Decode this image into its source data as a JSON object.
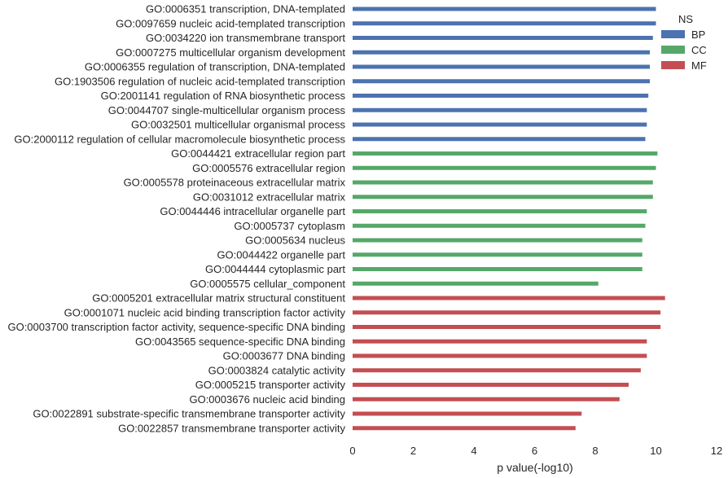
{
  "chart_data": {
    "type": "bar",
    "orientation": "horizontal",
    "xlabel": "p value(-log10)",
    "ylabel": "",
    "xlim": [
      0,
      12
    ],
    "xticks": [
      0,
      2,
      4,
      6,
      8,
      10,
      12
    ],
    "grid": false,
    "legend": {
      "title": "NS",
      "placement": "top-right",
      "entries": [
        {
          "name": "BP",
          "color": "#4c72b0"
        },
        {
          "name": "CC",
          "color": "#55a868"
        },
        {
          "name": "MF",
          "color": "#c44e52"
        }
      ]
    },
    "rows": [
      {
        "label": "GO:0006351 transcription, DNA-templated",
        "group": "BP",
        "value": 10.0
      },
      {
        "label": "GO:0097659 nucleic acid-templated transcription",
        "group": "BP",
        "value": 10.0
      },
      {
        "label": "GO:0034220 ion transmembrane transport",
        "group": "BP",
        "value": 9.9
      },
      {
        "label": "GO:0007275 multicellular organism development",
        "group": "BP",
        "value": 9.8
      },
      {
        "label": "GO:0006355 regulation of transcription, DNA-templated",
        "group": "BP",
        "value": 9.8
      },
      {
        "label": "GO:1903506 regulation of nucleic acid-templated transcription",
        "group": "BP",
        "value": 9.8
      },
      {
        "label": "GO:2001141 regulation of RNA biosynthetic process",
        "group": "BP",
        "value": 9.75
      },
      {
        "label": "GO:0044707 single-multicellular organism process",
        "group": "BP",
        "value": 9.7
      },
      {
        "label": "GO:0032501 multicellular organismal process",
        "group": "BP",
        "value": 9.7
      },
      {
        "label": "GO:2000112 regulation of cellular macromolecule biosynthetic process",
        "group": "BP",
        "value": 9.65
      },
      {
        "label": "GO:0044421 extracellular region part",
        "group": "CC",
        "value": 10.05
      },
      {
        "label": "GO:0005576 extracellular region",
        "group": "CC",
        "value": 10.0
      },
      {
        "label": "GO:0005578 proteinaceous extracellular matrix",
        "group": "CC",
        "value": 9.9
      },
      {
        "label": "GO:0031012 extracellular matrix",
        "group": "CC",
        "value": 9.9
      },
      {
        "label": "GO:0044446 intracellular organelle part",
        "group": "CC",
        "value": 9.7
      },
      {
        "label": "GO:0005737 cytoplasm",
        "group": "CC",
        "value": 9.65
      },
      {
        "label": "GO:0005634 nucleus",
        "group": "CC",
        "value": 9.55
      },
      {
        "label": "GO:0044422 organelle part",
        "group": "CC",
        "value": 9.55
      },
      {
        "label": "GO:0044444 cytoplasmic part",
        "group": "CC",
        "value": 9.55
      },
      {
        "label": "GO:0005575 cellular_component",
        "group": "CC",
        "value": 8.1
      },
      {
        "label": "GO:0005201 extracellular matrix structural constituent",
        "group": "MF",
        "value": 10.3
      },
      {
        "label": "GO:0001071 nucleic acid binding transcription factor activity",
        "group": "MF",
        "value": 10.15
      },
      {
        "label": "GO:0003700 transcription factor activity, sequence-specific DNA binding",
        "group": "MF",
        "value": 10.15
      },
      {
        "label": "GO:0043565 sequence-specific DNA binding",
        "group": "MF",
        "value": 9.7
      },
      {
        "label": "GO:0003677 DNA binding",
        "group": "MF",
        "value": 9.7
      },
      {
        "label": "GO:0003824 catalytic activity",
        "group": "MF",
        "value": 9.5
      },
      {
        "label": "GO:0005215 transporter activity",
        "group": "MF",
        "value": 9.1
      },
      {
        "label": "GO:0003676 nucleic acid binding",
        "group": "MF",
        "value": 8.8
      },
      {
        "label": "GO:0022891 substrate-specific transmembrane transporter activity",
        "group": "MF",
        "value": 7.55
      },
      {
        "label": "GO:0022857 transmembrane transporter activity",
        "group": "MF",
        "value": 7.35
      }
    ]
  }
}
